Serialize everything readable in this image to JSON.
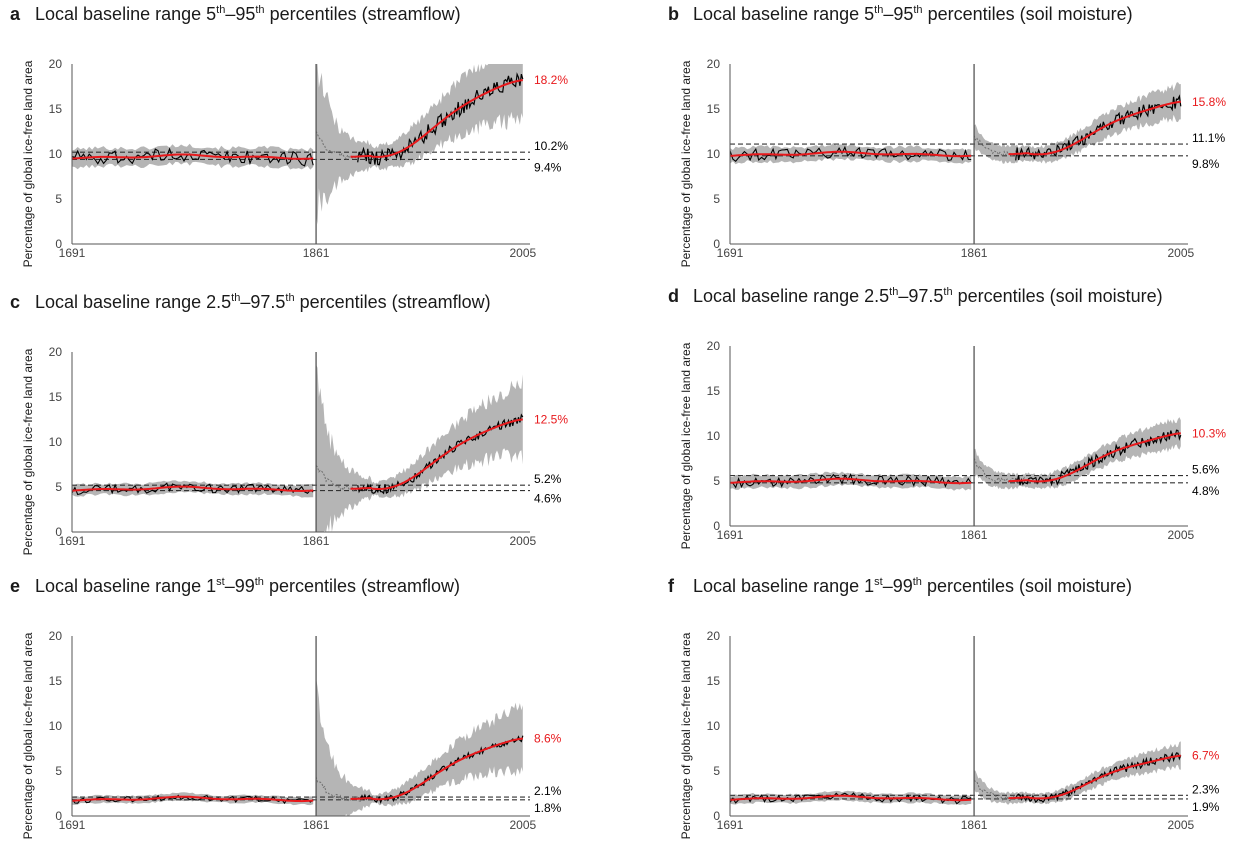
{
  "colors": {
    "mean": "#e8191c",
    "obs": "#000000",
    "band": "#b5b5b5",
    "ref": "#333333",
    "axis": "#555555",
    "tick": "#444444"
  },
  "y_axis_label": "Percentage of global ice-free land area",
  "chart_data": [
    {
      "type": "line",
      "letter": "a",
      "variable": "streamflow",
      "title": {
        "pre": "Local baseline range 5",
        "s1": "th",
        "mid": "–95",
        "s2": "th",
        "post": " percentiles (streamflow)"
      },
      "x_ticks": [
        1691,
        1861,
        2005
      ],
      "xlim": [
        1691,
        2010
      ],
      "y_ticks": [
        0,
        5,
        10,
        15,
        20
      ],
      "ylim": [
        0,
        20
      ],
      "divider_year": 1861,
      "baseline": 9.7,
      "transient_peak": 12.3,
      "band_pre": 1.0,
      "band_peak": 8.5,
      "band_end": 4.5,
      "end_mean": 18.2,
      "end_label": "18.2%",
      "ref_lines": [
        {
          "value": 10.2,
          "label": "10.2%"
        },
        {
          "value": 9.4,
          "label": "9.4%"
        }
      ]
    },
    {
      "type": "line",
      "letter": "b",
      "variable": "soil moisture",
      "title": {
        "pre": "Local baseline range 5",
        "s1": "th",
        "mid": "–95",
        "s2": "th",
        "post": " percentiles (soil moisture)"
      },
      "x_ticks": [
        1691,
        1861,
        2005
      ],
      "xlim": [
        1691,
        2010
      ],
      "y_ticks": [
        0,
        5,
        10,
        15,
        20
      ],
      "ylim": [
        0,
        20
      ],
      "divider_year": 1861,
      "baseline": 10.0,
      "transient_peak": 12.0,
      "band_pre": 0.8,
      "band_peak": 1.2,
      "band_end": 1.8,
      "end_mean": 15.8,
      "end_label": "15.8%",
      "ref_lines": [
        {
          "value": 11.1,
          "label": "11.1%"
        },
        {
          "value": 9.8,
          "label": "9.8%"
        }
      ]
    },
    {
      "type": "line",
      "letter": "c",
      "variable": "streamflow",
      "title": {
        "pre": "Local baseline range 2.5",
        "s1": "th",
        "mid": "–97.5",
        "s2": "th",
        "post": " percentiles (streamflow)"
      },
      "x_ticks": [
        1691,
        1861,
        2005
      ],
      "xlim": [
        1691,
        2010
      ],
      "y_ticks": [
        0,
        5,
        10,
        15,
        20
      ],
      "ylim": [
        0,
        20
      ],
      "divider_year": 1861,
      "baseline": 4.8,
      "transient_peak": 7.5,
      "band_pre": 0.6,
      "band_peak": 9.5,
      "band_end": 4.0,
      "end_mean": 12.5,
      "end_label": "12.5%",
      "ref_lines": [
        {
          "value": 5.2,
          "label": "5.2%"
        },
        {
          "value": 4.6,
          "label": "4.6%"
        }
      ]
    },
    {
      "type": "line",
      "letter": "d",
      "variable": "soil moisture",
      "title": {
        "pre": "Local baseline range 2.5",
        "s1": "th",
        "mid": "–97.5",
        "s2": "th",
        "post": " percentiles (soil moisture)"
      },
      "x_ticks": [
        1691,
        1861,
        2005
      ],
      "xlim": [
        1691,
        2010
      ],
      "y_ticks": [
        0,
        5,
        10,
        15,
        20
      ],
      "ylim": [
        0,
        20
      ],
      "divider_year": 1861,
      "baseline": 5.0,
      "transient_peak": 7.2,
      "band_pre": 0.7,
      "band_peak": 1.3,
      "band_end": 1.6,
      "end_mean": 10.3,
      "end_label": "10.3%",
      "ref_lines": [
        {
          "value": 5.6,
          "label": "5.6%"
        },
        {
          "value": 4.8,
          "label": "4.8%"
        }
      ]
    },
    {
      "type": "line",
      "letter": "e",
      "variable": "streamflow",
      "title": {
        "pre": "Local baseline range 1",
        "s1": "st",
        "mid": "–99",
        "s2": "th",
        "post": " percentiles (streamflow)"
      },
      "x_ticks": [
        1691,
        1861,
        2005
      ],
      "xlim": [
        1691,
        2010
      ],
      "y_ticks": [
        0,
        5,
        10,
        15,
        20
      ],
      "ylim": [
        0,
        20
      ],
      "divider_year": 1861,
      "baseline": 1.9,
      "transient_peak": 4.2,
      "band_pre": 0.4,
      "band_peak": 9.0,
      "band_end": 3.5,
      "end_mean": 8.6,
      "end_label": "8.6%",
      "ref_lines": [
        {
          "value": 2.1,
          "label": "2.1%"
        },
        {
          "value": 1.8,
          "label": "1.8%"
        }
      ]
    },
    {
      "type": "line",
      "letter": "f",
      "variable": "soil moisture",
      "title": {
        "pre": "Local baseline range 1",
        "s1": "st",
        "mid": "–99",
        "s2": "th",
        "post": " percentiles (soil moisture)"
      },
      "x_ticks": [
        1691,
        1861,
        2005
      ],
      "xlim": [
        1691,
        2010
      ],
      "y_ticks": [
        0,
        5,
        10,
        15,
        20
      ],
      "ylim": [
        0,
        20
      ],
      "divider_year": 1861,
      "baseline": 2.0,
      "transient_peak": 4.0,
      "band_pre": 0.5,
      "band_peak": 1.0,
      "band_end": 1.3,
      "end_mean": 6.7,
      "end_label": "6.7%",
      "ref_lines": [
        {
          "value": 2.3,
          "label": "2.3%"
        },
        {
          "value": 1.9,
          "label": "1.9%"
        }
      ]
    }
  ]
}
